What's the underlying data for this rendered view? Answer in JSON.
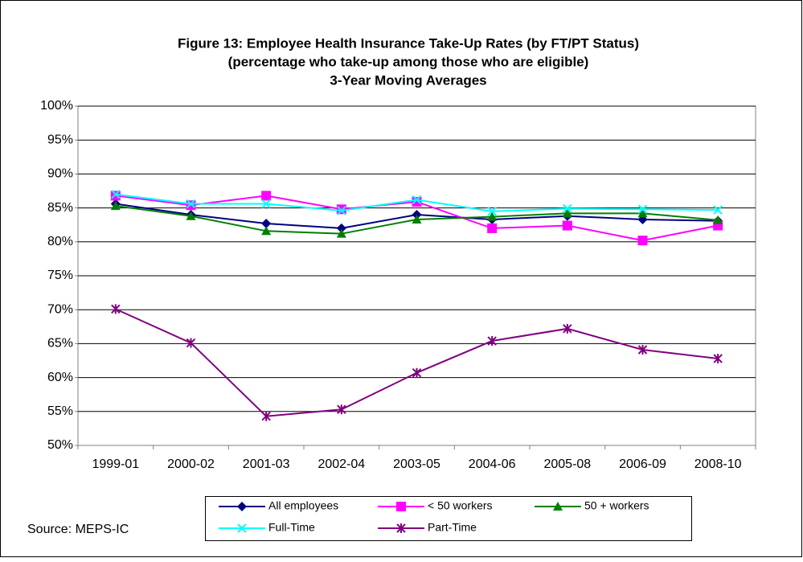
{
  "chart_data": {
    "type": "line",
    "title": [
      "Figure 13:  Employee Health Insurance Take-Up Rates (by FT/PT Status)",
      "(percentage who take-up among those who are eligible)",
      "3-Year Moving Averages"
    ],
    "source": "Source: MEPS-IC",
    "categories": [
      "1999-01",
      "2000-02",
      "2001-03",
      "2002-04",
      "2003-05",
      "2004-06",
      "2005-08",
      "2006-09",
      "2008-10"
    ],
    "series": [
      {
        "name": "All employees",
        "color": "#000080",
        "marker": "diamond",
        "values": [
          85.6,
          84.0,
          82.7,
          82.0,
          84.0,
          83.3,
          83.8,
          83.3,
          83.1
        ]
      },
      {
        "name": "< 50 workers",
        "color": "#ff00ff",
        "marker": "square",
        "values": [
          86.8,
          85.4,
          86.8,
          84.8,
          85.9,
          82.0,
          82.4,
          80.2,
          82.4
        ]
      },
      {
        "name": "50 + workers",
        "color": "#008000",
        "marker": "triangle",
        "values": [
          85.3,
          83.8,
          81.6,
          81.2,
          83.3,
          83.7,
          84.2,
          84.2,
          83.2
        ]
      },
      {
        "name": "Full-Time",
        "color": "#00ffff",
        "marker": "x",
        "values": [
          87.0,
          85.6,
          85.6,
          84.6,
          86.2,
          84.5,
          84.9,
          84.8,
          84.7
        ]
      },
      {
        "name": "Part-Time",
        "color": "#800080",
        "marker": "star",
        "values": [
          70.1,
          65.1,
          54.3,
          55.3,
          60.7,
          65.4,
          67.2,
          64.1,
          62.8
        ]
      }
    ],
    "ylim": [
      50,
      100
    ],
    "yticks": [
      {
        "value": 50,
        "label": "50%"
      },
      {
        "value": 55,
        "label": "55%"
      },
      {
        "value": 60,
        "label": "60%"
      },
      {
        "value": 65,
        "label": "65%"
      },
      {
        "value": 70,
        "label": "70%"
      },
      {
        "value": 75,
        "label": "75%"
      },
      {
        "value": 80,
        "label": "80%"
      },
      {
        "value": 85,
        "label": "85%"
      },
      {
        "value": 90,
        "label": "90%"
      },
      {
        "value": 95,
        "label": "95%"
      },
      {
        "value": 100,
        "label": "100%"
      }
    ],
    "grid": true
  }
}
